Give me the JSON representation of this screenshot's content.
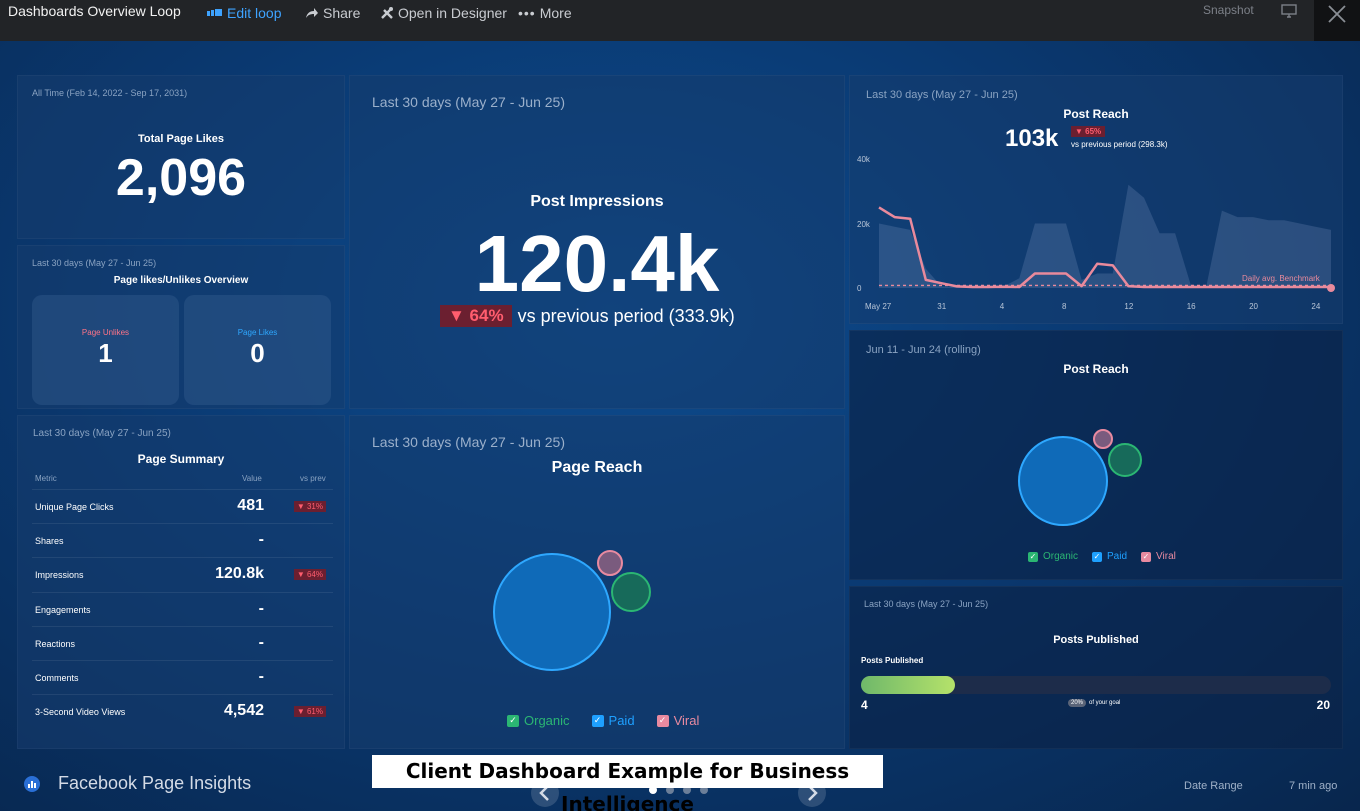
{
  "topbar": {
    "title": "Dashboards Overview Loop",
    "edit_loop": "Edit loop",
    "share": "Share",
    "open_designer": "Open in Designer",
    "more": "More",
    "snapshot": "Snapshot"
  },
  "likes": {
    "period": "All Time (Feb 14, 2022 - Sep 17, 2031)",
    "title": "Total Page Likes",
    "value": "2,096"
  },
  "likes_overview": {
    "period": "Last 30 days (May 27 - Jun 25)",
    "title": "Page likes/Unlikes Overview",
    "unlikes_label": "Page Unlikes",
    "unlikes_value": "1",
    "likes_label": "Page Likes",
    "likes_value": "0"
  },
  "summary": {
    "period": "Last 30 days (May 27 - Jun 25)",
    "title": "Page Summary",
    "headers": [
      "Metric",
      "Value",
      "vs prev"
    ],
    "rows": [
      {
        "metric": "Unique Page Clicks",
        "value": "481",
        "delta": "▼ 31%"
      },
      {
        "metric": "Shares",
        "value": "-",
        "delta": ""
      },
      {
        "metric": "Impressions",
        "value": "120.8k",
        "delta": "▼ 64%"
      },
      {
        "metric": "Engagements",
        "value": "-",
        "delta": ""
      },
      {
        "metric": "Reactions",
        "value": "-",
        "delta": ""
      },
      {
        "metric": "Comments",
        "value": "-",
        "delta": ""
      },
      {
        "metric": "3-Second Video Views",
        "value": "4,542",
        "delta": "▼ 61%"
      }
    ]
  },
  "impressions": {
    "period": "Last 30 days (May 27 - Jun 25)",
    "title": "Post Impressions",
    "value": "120.4k",
    "delta": "▼ 64%",
    "compare": "vs previous period (333.9k)"
  },
  "page_reach": {
    "period": "Last 30 days (May 27 - Jun 25)",
    "title": "Page Reach",
    "legend": [
      "Organic",
      "Paid",
      "Viral"
    ]
  },
  "post_reach_chart": {
    "period": "Last 30 days (May 27 - Jun 25)",
    "title": "Post Reach",
    "value": "103k",
    "delta": "▼ 65%",
    "compare": "vs previous period (298.3k)",
    "benchmark_label": "Daily avg. Benchmark"
  },
  "post_reach_bubble": {
    "period": "Jun 11 - Jun 24 (rolling)",
    "title": "Post Reach",
    "legend": [
      "Organic",
      "Paid",
      "Viral"
    ]
  },
  "posts_published": {
    "period": "Last 30 days (May 27 - Jun 25)",
    "title": "Posts Published",
    "bar_label": "Posts Published",
    "current": "4",
    "goal": "20",
    "pct_label": "20%",
    "goal_text": "of your goal",
    "progress_fraction": 0.2
  },
  "footer": {
    "title": "Facebook Page Insights",
    "caption": "Client Dashboard Example for Business Intelligence",
    "date_range": "Date Range",
    "updated": "7 min ago"
  },
  "colors": {
    "organic": "#2bb673",
    "paid": "#1ea0ff",
    "viral": "#e88aa0",
    "line": "#e98a9c",
    "progress": "#8fd36b"
  },
  "chart_data": {
    "type": "area",
    "title": "Post Reach",
    "x_ticks": [
      "May 27",
      "31",
      "4",
      "8",
      "12",
      "16",
      "20",
      "24"
    ],
    "y_ticks": [
      "40k",
      "20k",
      "0"
    ],
    "ylim": [
      0,
      40000
    ],
    "series": [
      {
        "name": "",
        "x": [
          "May 27",
          "May 28",
          "May 29",
          "May 30",
          "May 31",
          "Jun 1",
          "Jun 2",
          "Jun 3",
          "Jun 4",
          "Jun 5",
          "Jun 6",
          "Jun 7",
          "Jun 8",
          "Jun 9",
          "Jun 10",
          "Jun 11",
          "Jun 12",
          "Jun 13",
          "Jun 14",
          "Jun 15",
          "Jun 16",
          "Jun 17",
          "Jun 18",
          "Jun 19",
          "Jun 20",
          "Jun 21",
          "Jun 22",
          "Jun 23",
          "Jun 24",
          "Jun 25"
        ],
        "values": [
          25000,
          22000,
          21500,
          2500,
          1500,
          500,
          300,
          300,
          400,
          300,
          4500,
          4500,
          4500,
          600,
          7500,
          7000,
          600,
          300,
          300,
          300,
          300,
          300,
          300,
          300,
          300,
          300,
          300,
          300,
          300,
          300
        ]
      },
      {
        "name": "",
        "x": [
          "May 27",
          "May 28",
          "May 29",
          "May 30",
          "May 31",
          "Jun 1",
          "Jun 2",
          "Jun 3",
          "Jun 4",
          "Jun 5",
          "Jun 6",
          "Jun 7",
          "Jun 8",
          "Jun 9",
          "Jun 10",
          "Jun 11",
          "Jun 12",
          "Jun 13",
          "Jun 14",
          "Jun 15",
          "Jun 16",
          "Jun 17",
          "Jun 18",
          "Jun 19",
          "Jun 20",
          "Jun 21",
          "Jun 22",
          "Jun 23",
          "Jun 24",
          "Jun 25"
        ],
        "values": [
          20000,
          19000,
          18000,
          6000,
          500,
          300,
          300,
          300,
          500,
          3000,
          20000,
          20000,
          20000,
          2500,
          4500,
          4500,
          32000,
          28000,
          17000,
          17000,
          1000,
          500,
          24000,
          22000,
          22000,
          21000,
          21000,
          20000,
          19000,
          18000
        ]
      }
    ],
    "benchmark": 800
  }
}
